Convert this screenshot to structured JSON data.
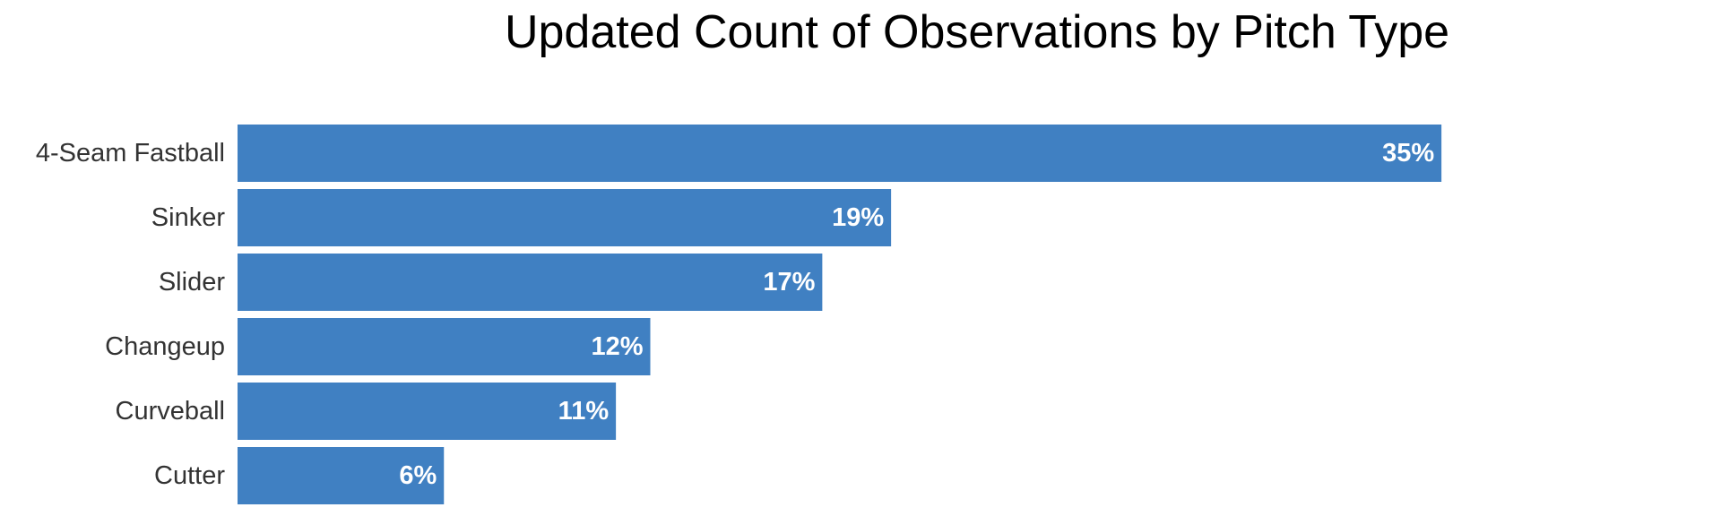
{
  "chart_data": {
    "type": "bar",
    "orientation": "horizontal",
    "title": "Updated Count of Observations by Pitch Type",
    "xlabel": "",
    "ylabel": "",
    "categories": [
      "4-Seam Fastball",
      "Sinker",
      "Slider",
      "Changeup",
      "Curveball",
      "Cutter"
    ],
    "values": [
      35,
      19,
      17,
      12,
      11,
      6
    ],
    "value_labels": [
      "35%",
      "19%",
      "17%",
      "12%",
      "11%",
      "6%"
    ],
    "xlim": [
      0,
      40
    ],
    "grid": false,
    "legend": "none",
    "bar_color": "#4080c2",
    "value_label_color": "#ffffff"
  }
}
